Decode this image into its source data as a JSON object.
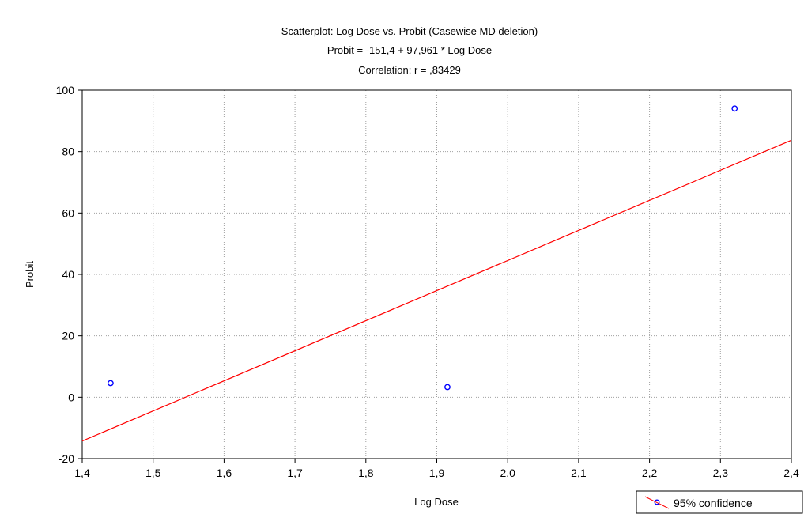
{
  "chart_data": {
    "type": "scatter",
    "title": "Scatterplot: Log Dose vs. Probit   (Casewise MD deletion)",
    "subtitle_equation": "Probit   = -151,4 + 97,961 * Log Dose",
    "subtitle_correlation": "Correlation: r = ,83429",
    "xlabel": "Log Dose",
    "ylabel": "Probit",
    "xlim": [
      1.4,
      2.4
    ],
    "ylim": [
      -20,
      100
    ],
    "x_ticks": [
      {
        "value": 1.4,
        "label": "1,4"
      },
      {
        "value": 1.5,
        "label": "1,5"
      },
      {
        "value": 1.6,
        "label": "1,6"
      },
      {
        "value": 1.7,
        "label": "1,7"
      },
      {
        "value": 1.8,
        "label": "1,8"
      },
      {
        "value": 1.9,
        "label": "1,9"
      },
      {
        "value": 2.0,
        "label": "2,0"
      },
      {
        "value": 2.1,
        "label": "2,1"
      },
      {
        "value": 2.2,
        "label": "2,2"
      },
      {
        "value": 2.3,
        "label": "2,3"
      },
      {
        "value": 2.4,
        "label": "2,4"
      }
    ],
    "y_ticks": [
      {
        "value": -20,
        "label": "-20"
      },
      {
        "value": 0,
        "label": "0"
      },
      {
        "value": 20,
        "label": "20"
      },
      {
        "value": 40,
        "label": "40"
      },
      {
        "value": 60,
        "label": "60"
      },
      {
        "value": 80,
        "label": "80"
      },
      {
        "value": 100,
        "label": "100"
      }
    ],
    "points": [
      {
        "x": 1.44,
        "y": 4.6
      },
      {
        "x": 1.915,
        "y": 3.3
      },
      {
        "x": 2.32,
        "y": 94
      }
    ],
    "fit_line": {
      "intercept": -151.4,
      "slope": 97.961
    },
    "grid": true,
    "legend": {
      "label": "95% confidence",
      "placement": "bottom-right"
    },
    "colors": {
      "points": "#0000ff",
      "fit_line": "#ff0000",
      "grid": "#a0a0a0"
    }
  }
}
